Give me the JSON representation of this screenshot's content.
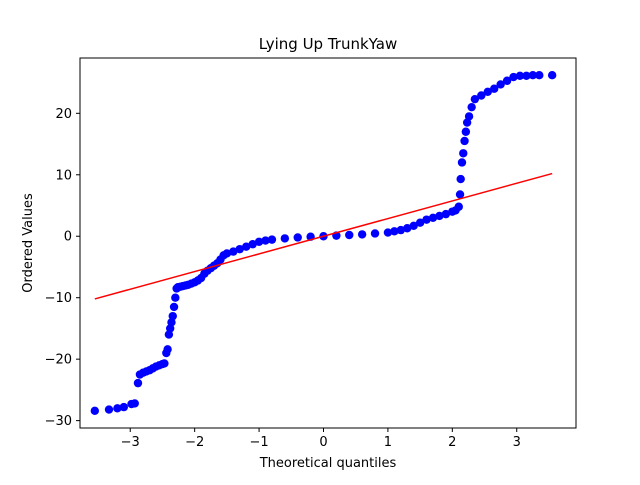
{
  "chart_data": {
    "type": "scatter",
    "title": "Lying Up TrunkYaw",
    "xlabel": "Theoretical quantiles",
    "ylabel": "Ordered Values",
    "xlim": [
      -3.78,
      3.92
    ],
    "ylim": [
      -31.2,
      29.0
    ],
    "xticks": [
      -3,
      -2,
      -1,
      0,
      1,
      2,
      3
    ],
    "yticks": [
      -30,
      -20,
      -10,
      0,
      10,
      20
    ],
    "grid": false,
    "legend": "none",
    "colors": {
      "points": "#0000ff",
      "fit_line": "#ff0000"
    },
    "fit_line": {
      "x": [
        -3.55,
        3.55
      ],
      "y": [
        -10.2,
        10.2
      ]
    },
    "series": [
      {
        "points": [
          [
            -3.55,
            -28.4
          ],
          [
            -3.33,
            -28.2
          ],
          [
            -3.2,
            -28.0
          ],
          [
            -3.1,
            -27.8
          ],
          [
            -2.98,
            -27.3
          ],
          [
            -2.93,
            -27.2
          ],
          [
            -2.88,
            -23.9
          ],
          [
            -2.85,
            -22.5
          ],
          [
            -2.8,
            -22.2
          ],
          [
            -2.75,
            -22.0
          ],
          [
            -2.7,
            -21.8
          ],
          [
            -2.65,
            -21.5
          ],
          [
            -2.6,
            -21.2
          ],
          [
            -2.55,
            -21.0
          ],
          [
            -2.5,
            -20.8
          ],
          [
            -2.47,
            -20.7
          ],
          [
            -2.44,
            -19.0
          ],
          [
            -2.42,
            -18.4
          ],
          [
            -2.4,
            -16.0
          ],
          [
            -2.38,
            -15.0
          ],
          [
            -2.36,
            -14.0
          ],
          [
            -2.34,
            -13.0
          ],
          [
            -2.32,
            -11.5
          ],
          [
            -2.3,
            -10.0
          ],
          [
            -2.28,
            -8.5
          ],
          [
            -2.26,
            -8.3
          ],
          [
            -2.22,
            -8.2
          ],
          [
            -2.18,
            -8.1
          ],
          [
            -2.14,
            -8.0
          ],
          [
            -2.1,
            -7.9
          ],
          [
            -2.05,
            -7.7
          ],
          [
            -2.0,
            -7.5
          ],
          [
            -1.95,
            -7.2
          ],
          [
            -1.9,
            -6.8
          ],
          [
            -1.85,
            -6.1
          ],
          [
            -1.8,
            -5.6
          ],
          [
            -1.75,
            -5.2
          ],
          [
            -1.7,
            -4.8
          ],
          [
            -1.65,
            -4.4
          ],
          [
            -1.6,
            -3.8
          ],
          [
            -1.55,
            -3.1
          ],
          [
            -1.5,
            -2.8
          ],
          [
            -1.4,
            -2.5
          ],
          [
            -1.3,
            -2.1
          ],
          [
            -1.2,
            -1.7
          ],
          [
            -1.1,
            -1.3
          ],
          [
            -1.0,
            -0.9
          ],
          [
            -0.9,
            -0.7
          ],
          [
            -0.8,
            -0.55
          ],
          [
            -0.6,
            -0.35
          ],
          [
            -0.4,
            -0.2
          ],
          [
            -0.2,
            -0.08
          ],
          [
            0.0,
            0.0
          ],
          [
            0.2,
            0.1
          ],
          [
            0.4,
            0.2
          ],
          [
            0.6,
            0.3
          ],
          [
            0.8,
            0.45
          ],
          [
            1.0,
            0.6
          ],
          [
            1.1,
            0.8
          ],
          [
            1.2,
            1.0
          ],
          [
            1.3,
            1.3
          ],
          [
            1.4,
            1.7
          ],
          [
            1.5,
            2.2
          ],
          [
            1.6,
            2.7
          ],
          [
            1.7,
            3.0
          ],
          [
            1.8,
            3.3
          ],
          [
            1.9,
            3.6
          ],
          [
            2.0,
            4.0
          ],
          [
            2.05,
            4.2
          ],
          [
            2.1,
            4.8
          ],
          [
            2.12,
            6.8
          ],
          [
            2.13,
            9.3
          ],
          [
            2.15,
            12.0
          ],
          [
            2.17,
            13.5
          ],
          [
            2.19,
            15.5
          ],
          [
            2.21,
            17.0
          ],
          [
            2.23,
            18.5
          ],
          [
            2.26,
            19.5
          ],
          [
            2.3,
            21.0
          ],
          [
            2.35,
            22.3
          ],
          [
            2.45,
            22.9
          ],
          [
            2.55,
            23.5
          ],
          [
            2.65,
            24.0
          ],
          [
            2.75,
            24.7
          ],
          [
            2.85,
            25.3
          ],
          [
            2.95,
            25.9
          ],
          [
            3.05,
            26.1
          ],
          [
            3.15,
            26.1
          ],
          [
            3.25,
            26.2
          ],
          [
            3.35,
            26.2
          ],
          [
            3.55,
            26.2
          ]
        ]
      }
    ]
  }
}
